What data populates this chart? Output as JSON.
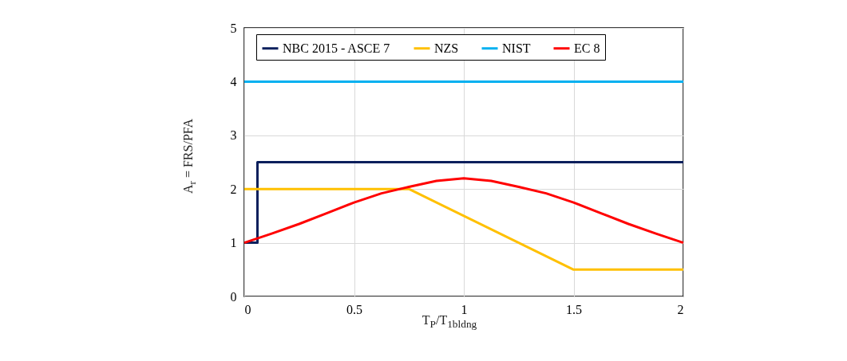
{
  "chart_data": {
    "type": "line",
    "xlabel": "T$_{P}$/T$_{1bldng}$",
    "ylabel": "A$_{r}$ = FRS/PFA",
    "xlim": [
      0,
      2
    ],
    "ylim": [
      0,
      5
    ],
    "xticks": [
      0,
      0.5,
      1,
      1.5,
      2
    ],
    "yticks": [
      0,
      1,
      2,
      3,
      4,
      5
    ],
    "grid": true,
    "legend": "top",
    "marker": "none",
    "line_style": "solid",
    "series": [
      {
        "name": "NBC 2015 - ASCE 7",
        "color": "#0a1f5c",
        "x": [
          0,
          0.06,
          0.06,
          2
        ],
        "values": [
          1,
          1,
          2.5,
          2.5
        ]
      },
      {
        "name": "NZS",
        "color": "#ffc000",
        "x": [
          0,
          0.75,
          1.5,
          2
        ],
        "values": [
          2,
          2,
          0.5,
          0.5
        ]
      },
      {
        "name": "NIST",
        "color": "#00b0f0",
        "x": [
          0,
          2
        ],
        "values": [
          4,
          4
        ]
      },
      {
        "name": "EC 8",
        "color": "#ff0000",
        "x": [
          0,
          0.125,
          0.25,
          0.375,
          0.5,
          0.625,
          0.75,
          0.875,
          1,
          1.125,
          1.25,
          1.375,
          1.5,
          1.625,
          1.75,
          1.875,
          2
        ],
        "values": [
          1,
          1.17,
          1.35,
          1.55,
          1.75,
          1.92,
          2.04,
          2.15,
          2.2,
          2.15,
          2.04,
          1.92,
          1.75,
          1.55,
          1.35,
          1.17,
          1
        ]
      }
    ]
  }
}
